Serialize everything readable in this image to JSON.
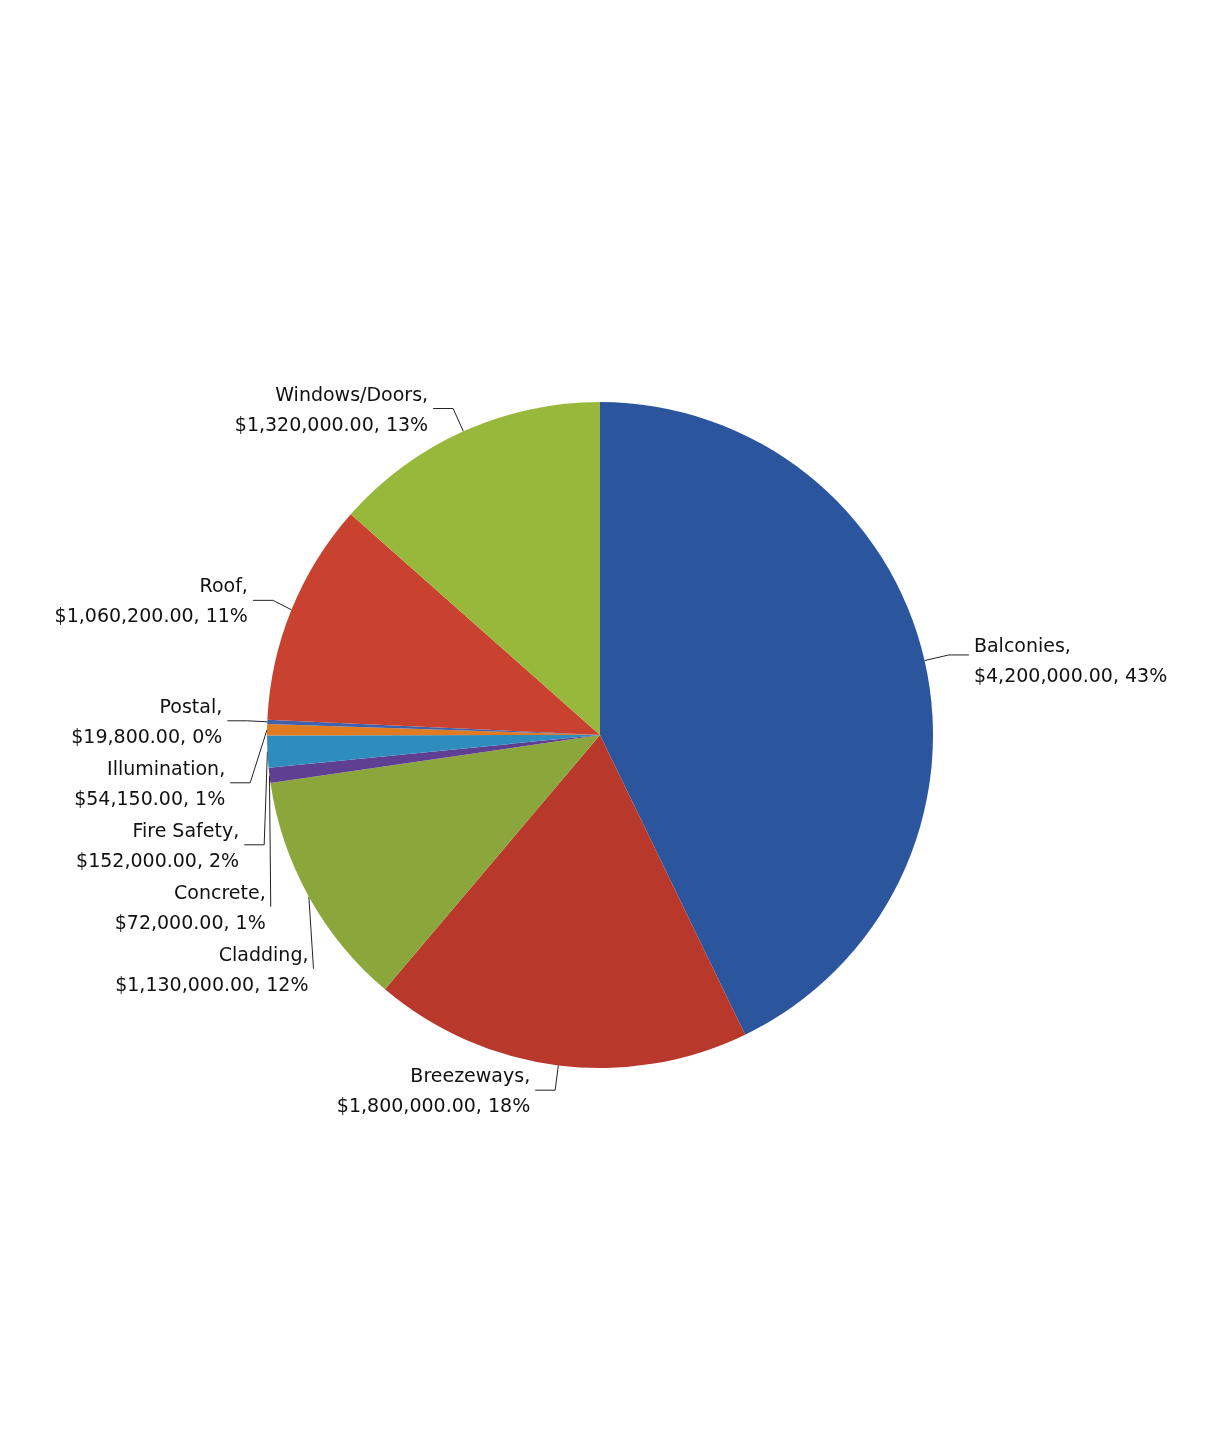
{
  "chart_data": {
    "type": "pie",
    "categories": [
      "Balconies",
      "Breezeways",
      "Cladding",
      "Concrete",
      "Fire Safety",
      "Illumination",
      "Postal",
      "Roof",
      "Windows/Doors"
    ],
    "values": [
      4200000,
      1800000,
      1130000,
      72000,
      152000,
      54150,
      19800,
      1060200,
      1320000
    ],
    "colors": [
      "#2b559c",
      "#b8392c",
      "#8ba63a",
      "#5e3f91",
      "#2f8cbf",
      "#e07b22",
      "#3e62ac",
      "#c9412f",
      "#98b83c"
    ],
    "value_labels": [
      ", $4,200,000.00, 43%",
      ", $1,800,000.00, 18%",
      ", $1,130,000.00, 12%",
      ", $72,000.00, 1%",
      ", $152,000.00, 2%",
      ", $54,150.00, 1%",
      ", $19,800.00, 0%",
      ", $1,060,200.00, 11%",
      ", $1,320,000.00, 13%"
    ],
    "legend": false
  }
}
